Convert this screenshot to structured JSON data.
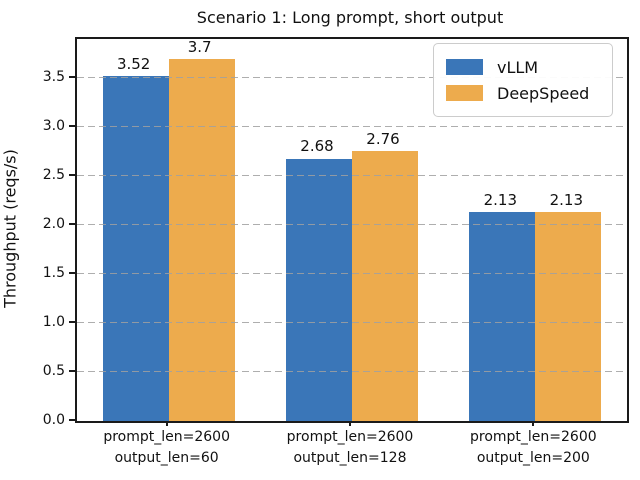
{
  "chart_data": {
    "type": "bar",
    "title": "Scenario 1: Long prompt, short output",
    "xlabel": "",
    "ylabel": "Throughput (reqs/s)",
    "categories": [
      "prompt_len=2600\noutput_len=60",
      "prompt_len=2600\noutput_len=128",
      "prompt_len=2600\noutput_len=200"
    ],
    "series": [
      {
        "name": "vLLM",
        "color": "#3A76B8",
        "values": [
          3.52,
          2.68,
          2.13
        ]
      },
      {
        "name": "DeepSpeed",
        "color": "#EDAB4D",
        "values": [
          3.7,
          2.76,
          2.13
        ]
      }
    ],
    "bar_value_labels": [
      [
        "3.52",
        "2.68",
        "2.13"
      ],
      [
        "3.7",
        "2.76",
        "2.13"
      ]
    ],
    "yticks": [
      0.0,
      0.5,
      1.0,
      1.5,
      2.0,
      2.5,
      3.0,
      3.5
    ],
    "ylim": [
      0,
      3.9
    ],
    "grid": "horizontal dashed, drawn over bars",
    "legend_position": "upper right"
  }
}
